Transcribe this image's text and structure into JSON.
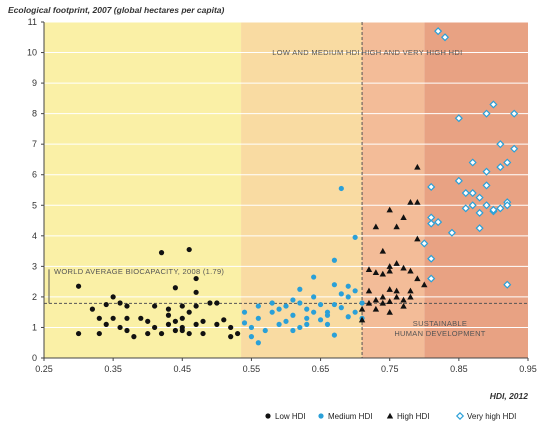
{
  "chart_data": {
    "type": "scatter",
    "ylabel": "Ecological footprint, 2007 (global hectares per capita)",
    "xlabel": "HDI, 2012",
    "xlim": [
      0.25,
      0.95
    ],
    "ylim": [
      0,
      11
    ],
    "x_ticks": [
      "0.25",
      "0.35",
      "0.45",
      "0.55",
      "0.65",
      "0.75",
      "0.85",
      "0.95"
    ],
    "y_ticks": [
      "0",
      "1",
      "2",
      "3",
      "4",
      "5",
      "6",
      "7",
      "8",
      "9",
      "10",
      "11"
    ],
    "grid": true,
    "legend_position": "bottom",
    "bands": [
      {
        "from": 0.25,
        "to": 0.535,
        "color": "#faf0a6"
      },
      {
        "from": 0.535,
        "to": 0.71,
        "color": "#f9dba2"
      },
      {
        "from": 0.71,
        "to": 0.8,
        "color": "#f3bc98"
      },
      {
        "from": 0.8,
        "to": 0.95,
        "color": "#e8a283"
      }
    ],
    "hdi_threshold": 0.71,
    "biocapacity": 1.79,
    "annotations": {
      "low_medium": "LOW AND MEDIUM HDI",
      "high_very_high": "HIGH AND VERY HIGH HDI",
      "biocapacity": "WORLD AVERAGE BIOCAPACITY, 2008 (1.79)",
      "sustainable_line1": "SUSTAINABLE",
      "sustainable_line2": "HUMAN DEVELOPMENT"
    },
    "series": [
      {
        "name": "Low HDI",
        "marker": "circle",
        "color": "#111111",
        "points": [
          [
            0.3,
            0.8
          ],
          [
            0.3,
            2.35
          ],
          [
            0.32,
            1.6
          ],
          [
            0.33,
            0.8
          ],
          [
            0.34,
            1.1
          ],
          [
            0.34,
            1.75
          ],
          [
            0.35,
            1.3
          ],
          [
            0.35,
            2.0
          ],
          [
            0.36,
            1.8
          ],
          [
            0.36,
            1.0
          ],
          [
            0.37,
            1.3
          ],
          [
            0.37,
            1.7
          ],
          [
            0.37,
            0.9
          ],
          [
            0.38,
            0.7
          ],
          [
            0.4,
            1.2
          ],
          [
            0.4,
            0.8
          ],
          [
            0.41,
            1.0
          ],
          [
            0.41,
            1.7
          ],
          [
            0.42,
            3.45
          ],
          [
            0.42,
            0.8
          ],
          [
            0.43,
            1.1
          ],
          [
            0.43,
            1.6
          ],
          [
            0.44,
            1.2
          ],
          [
            0.44,
            0.9
          ],
          [
            0.44,
            2.3
          ],
          [
            0.45,
            1.7
          ],
          [
            0.45,
            1.0
          ],
          [
            0.45,
            1.3
          ],
          [
            0.46,
            0.8
          ],
          [
            0.46,
            1.5
          ],
          [
            0.46,
            3.55
          ],
          [
            0.47,
            2.6
          ],
          [
            0.47,
            1.7
          ],
          [
            0.47,
            1.1
          ],
          [
            0.47,
            2.15
          ],
          [
            0.48,
            1.2
          ],
          [
            0.48,
            0.8
          ],
          [
            0.49,
            1.8
          ],
          [
            0.5,
            1.1
          ],
          [
            0.5,
            1.8
          ],
          [
            0.51,
            1.25
          ],
          [
            0.52,
            1.0
          ],
          [
            0.52,
            0.7
          ],
          [
            0.53,
            0.8
          ],
          [
            0.45,
            0.9
          ],
          [
            0.43,
            1.4
          ],
          [
            0.39,
            1.3
          ],
          [
            0.33,
            1.3
          ]
        ]
      },
      {
        "name": "Medium HDI",
        "marker": "circle",
        "color": "#2aa0d8",
        "points": [
          [
            0.54,
            1.5
          ],
          [
            0.54,
            1.15
          ],
          [
            0.55,
            0.7
          ],
          [
            0.55,
            1.0
          ],
          [
            0.56,
            1.7
          ],
          [
            0.56,
            1.3
          ],
          [
            0.56,
            0.5
          ],
          [
            0.57,
            0.9
          ],
          [
            0.58,
            1.8
          ],
          [
            0.58,
            1.5
          ],
          [
            0.59,
            1.6
          ],
          [
            0.59,
            1.1
          ],
          [
            0.6,
            1.2
          ],
          [
            0.6,
            1.7
          ],
          [
            0.61,
            1.9
          ],
          [
            0.61,
            1.4
          ],
          [
            0.61,
            0.9
          ],
          [
            0.62,
            2.25
          ],
          [
            0.62,
            1.8
          ],
          [
            0.63,
            1.6
          ],
          [
            0.63,
            1.3
          ],
          [
            0.63,
            1.1
          ],
          [
            0.64,
            2.0
          ],
          [
            0.64,
            1.5
          ],
          [
            0.64,
            2.65
          ],
          [
            0.65,
            1.25
          ],
          [
            0.65,
            1.75
          ],
          [
            0.66,
            1.5
          ],
          [
            0.66,
            1.4
          ],
          [
            0.67,
            3.2
          ],
          [
            0.67,
            2.4
          ],
          [
            0.67,
            1.75
          ],
          [
            0.68,
            5.55
          ],
          [
            0.68,
            2.1
          ],
          [
            0.68,
            1.65
          ],
          [
            0.69,
            2.35
          ],
          [
            0.69,
            2.0
          ],
          [
            0.69,
            1.35
          ],
          [
            0.7,
            3.95
          ],
          [
            0.7,
            2.2
          ],
          [
            0.7,
            1.5
          ],
          [
            0.71,
            1.8
          ],
          [
            0.71,
            1.3
          ],
          [
            0.66,
            1.1
          ],
          [
            0.62,
            1.0
          ],
          [
            0.67,
            0.75
          ]
        ]
      },
      {
        "name": "High HDI",
        "marker": "triangle",
        "color": "#111111",
        "points": [
          [
            0.71,
            1.6
          ],
          [
            0.71,
            1.25
          ],
          [
            0.72,
            1.8
          ],
          [
            0.72,
            2.2
          ],
          [
            0.73,
            1.9
          ],
          [
            0.73,
            2.8
          ],
          [
            0.73,
            1.6
          ],
          [
            0.73,
            4.3
          ],
          [
            0.74,
            2.75
          ],
          [
            0.74,
            1.8
          ],
          [
            0.74,
            3.5
          ],
          [
            0.74,
            2.0
          ],
          [
            0.75,
            2.85
          ],
          [
            0.75,
            1.85
          ],
          [
            0.75,
            3.0
          ],
          [
            0.75,
            4.85
          ],
          [
            0.75,
            2.25
          ],
          [
            0.76,
            2.2
          ],
          [
            0.76,
            3.1
          ],
          [
            0.76,
            2.0
          ],
          [
            0.77,
            2.95
          ],
          [
            0.77,
            4.6
          ],
          [
            0.77,
            1.9
          ],
          [
            0.77,
            1.7
          ],
          [
            0.78,
            2.85
          ],
          [
            0.78,
            2.2
          ],
          [
            0.78,
            5.1
          ],
          [
            0.78,
            2.0
          ],
          [
            0.79,
            2.6
          ],
          [
            0.79,
            5.1
          ],
          [
            0.79,
            6.25
          ],
          [
            0.79,
            3.9
          ],
          [
            0.8,
            2.4
          ],
          [
            0.76,
            4.3
          ],
          [
            0.72,
            2.9
          ],
          [
            0.75,
            1.5
          ]
        ]
      },
      {
        "name": "Very high HDI",
        "marker": "diamond",
        "color": "#2aa0d8",
        "points": [
          [
            0.8,
            3.75
          ],
          [
            0.81,
            5.6
          ],
          [
            0.81,
            4.6
          ],
          [
            0.81,
            4.4
          ],
          [
            0.81,
            3.25
          ],
          [
            0.81,
            2.6
          ],
          [
            0.82,
            4.45
          ],
          [
            0.82,
            10.7
          ],
          [
            0.83,
            10.5
          ],
          [
            0.84,
            4.1
          ],
          [
            0.85,
            5.8
          ],
          [
            0.85,
            7.85
          ],
          [
            0.86,
            5.4
          ],
          [
            0.86,
            4.9
          ],
          [
            0.87,
            6.4
          ],
          [
            0.87,
            5.4
          ],
          [
            0.87,
            5.0
          ],
          [
            0.88,
            5.25
          ],
          [
            0.88,
            4.75
          ],
          [
            0.89,
            5.65
          ],
          [
            0.89,
            5.0
          ],
          [
            0.89,
            6.1
          ],
          [
            0.89,
            8.0
          ],
          [
            0.9,
            4.8
          ],
          [
            0.9,
            8.3
          ],
          [
            0.9,
            4.85
          ],
          [
            0.91,
            7.0
          ],
          [
            0.91,
            4.9
          ],
          [
            0.91,
            6.25
          ],
          [
            0.92,
            5.1
          ],
          [
            0.92,
            6.4
          ],
          [
            0.92,
            5.0
          ],
          [
            0.93,
            6.85
          ],
          [
            0.93,
            8.0
          ],
          [
            0.92,
            2.4
          ],
          [
            0.88,
            4.25
          ]
        ]
      }
    ]
  }
}
